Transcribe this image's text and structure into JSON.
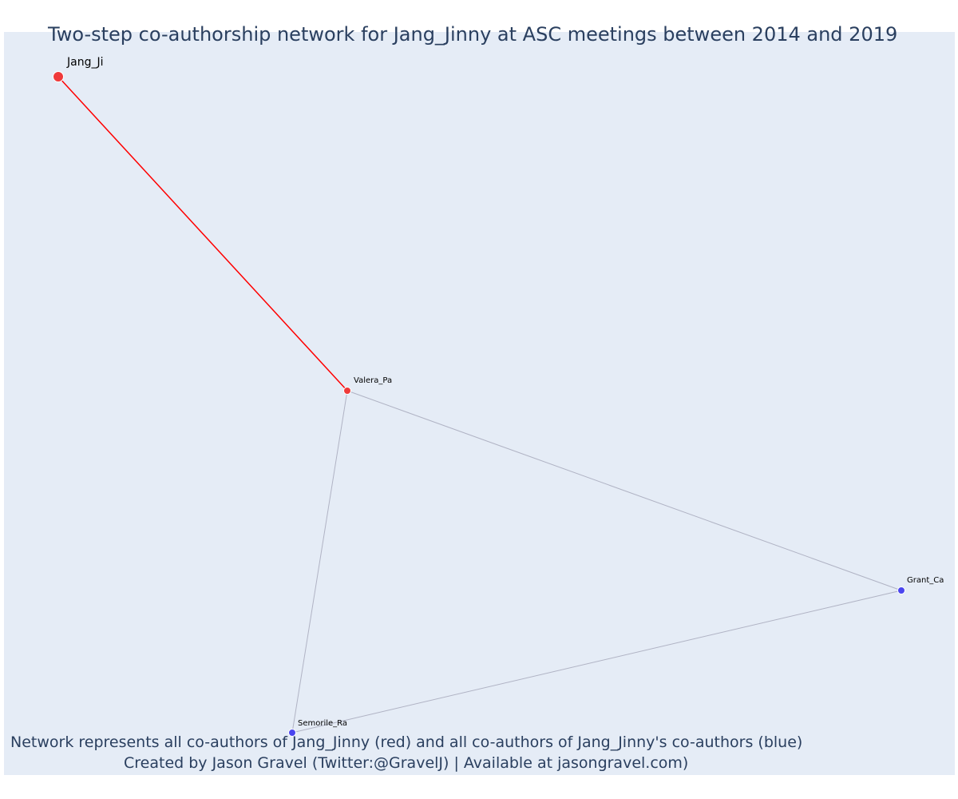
{
  "title": "Two-step co-authorship network for Jang_Jinny at ASC meetings between 2014 and 2019",
  "caption": {
    "line1": "Network represents all co-authors of Jang_Jinny (red) and all co-authors of Jang_Jinny's co-authors (blue)",
    "line2": "Created by Jason Gravel (Twitter:@GravelJ) | Available at jasongravel.com)"
  },
  "colors": {
    "background": "#e5ecf6",
    "red_node": "#ef3a3a",
    "blue_node": "#4a45ef",
    "red_edge": "#ff0000",
    "gray_edge": "#b0b3c4"
  },
  "nodes": [
    {
      "id": "jang",
      "label": "Jang_Ji",
      "group": "focal"
    },
    {
      "id": "valera",
      "label": "Valera_Pa",
      "group": "coauthor"
    },
    {
      "id": "grant",
      "label": "Grant_Ca",
      "group": "second-step"
    },
    {
      "id": "semorile",
      "label": "Semorile_Ra",
      "group": "second-step"
    }
  ],
  "edges": [
    {
      "source": "jang",
      "target": "valera",
      "type": "direct"
    },
    {
      "source": "valera",
      "target": "grant",
      "type": "indirect"
    },
    {
      "source": "valera",
      "target": "semorile",
      "type": "indirect"
    },
    {
      "source": "grant",
      "target": "semorile",
      "type": "indirect"
    }
  ]
}
